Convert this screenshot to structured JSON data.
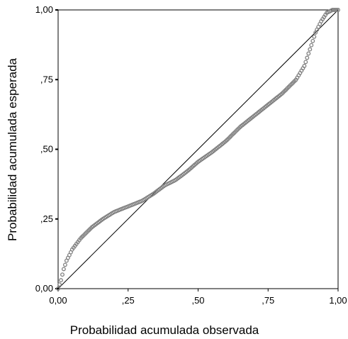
{
  "chart_data": {
    "type": "scatter",
    "title": "",
    "xlabel": "Probabilidad acumulada observada",
    "ylabel": "Probabilidad acumulada esperada",
    "xlim": [
      0,
      1
    ],
    "ylim": [
      0,
      1
    ],
    "x_ticks": [
      {
        "value": 0,
        "label": "0,00"
      },
      {
        "value": 0.25,
        "label": ",25"
      },
      {
        "value": 0.5,
        "label": ",50"
      },
      {
        "value": 0.75,
        "label": ",75"
      },
      {
        "value": 1,
        "label": "1,00"
      }
    ],
    "y_ticks": [
      {
        "value": 0,
        "label": "0,00"
      },
      {
        "value": 0.25,
        "label": ",25"
      },
      {
        "value": 0.5,
        "label": ",50"
      },
      {
        "value": 0.75,
        "label": ",75"
      },
      {
        "value": 1,
        "label": "1,00"
      }
    ],
    "grid": false,
    "legend": "none",
    "reference_line": {
      "from": [
        0,
        0
      ],
      "to": [
        1,
        1
      ]
    },
    "marker_color": "#808080",
    "line_color": "#000000",
    "curve_points": [
      [
        0.0,
        0.0
      ],
      [
        0.01,
        0.03
      ],
      [
        0.02,
        0.07
      ],
      [
        0.03,
        0.1
      ],
      [
        0.05,
        0.14
      ],
      [
        0.08,
        0.18
      ],
      [
        0.12,
        0.22
      ],
      [
        0.16,
        0.25
      ],
      [
        0.2,
        0.275
      ],
      [
        0.25,
        0.295
      ],
      [
        0.3,
        0.315
      ],
      [
        0.34,
        0.34
      ],
      [
        0.38,
        0.37
      ],
      [
        0.42,
        0.39
      ],
      [
        0.46,
        0.42
      ],
      [
        0.5,
        0.455
      ],
      [
        0.55,
        0.49
      ],
      [
        0.6,
        0.53
      ],
      [
        0.65,
        0.58
      ],
      [
        0.7,
        0.62
      ],
      [
        0.75,
        0.66
      ],
      [
        0.8,
        0.7
      ],
      [
        0.85,
        0.75
      ],
      [
        0.88,
        0.8
      ],
      [
        0.9,
        0.86
      ],
      [
        0.92,
        0.92
      ],
      [
        0.94,
        0.96
      ],
      [
        0.96,
        0.99
      ],
      [
        0.98,
        1.0
      ],
      [
        1.0,
        1.0
      ]
    ],
    "num_points": 200
  }
}
